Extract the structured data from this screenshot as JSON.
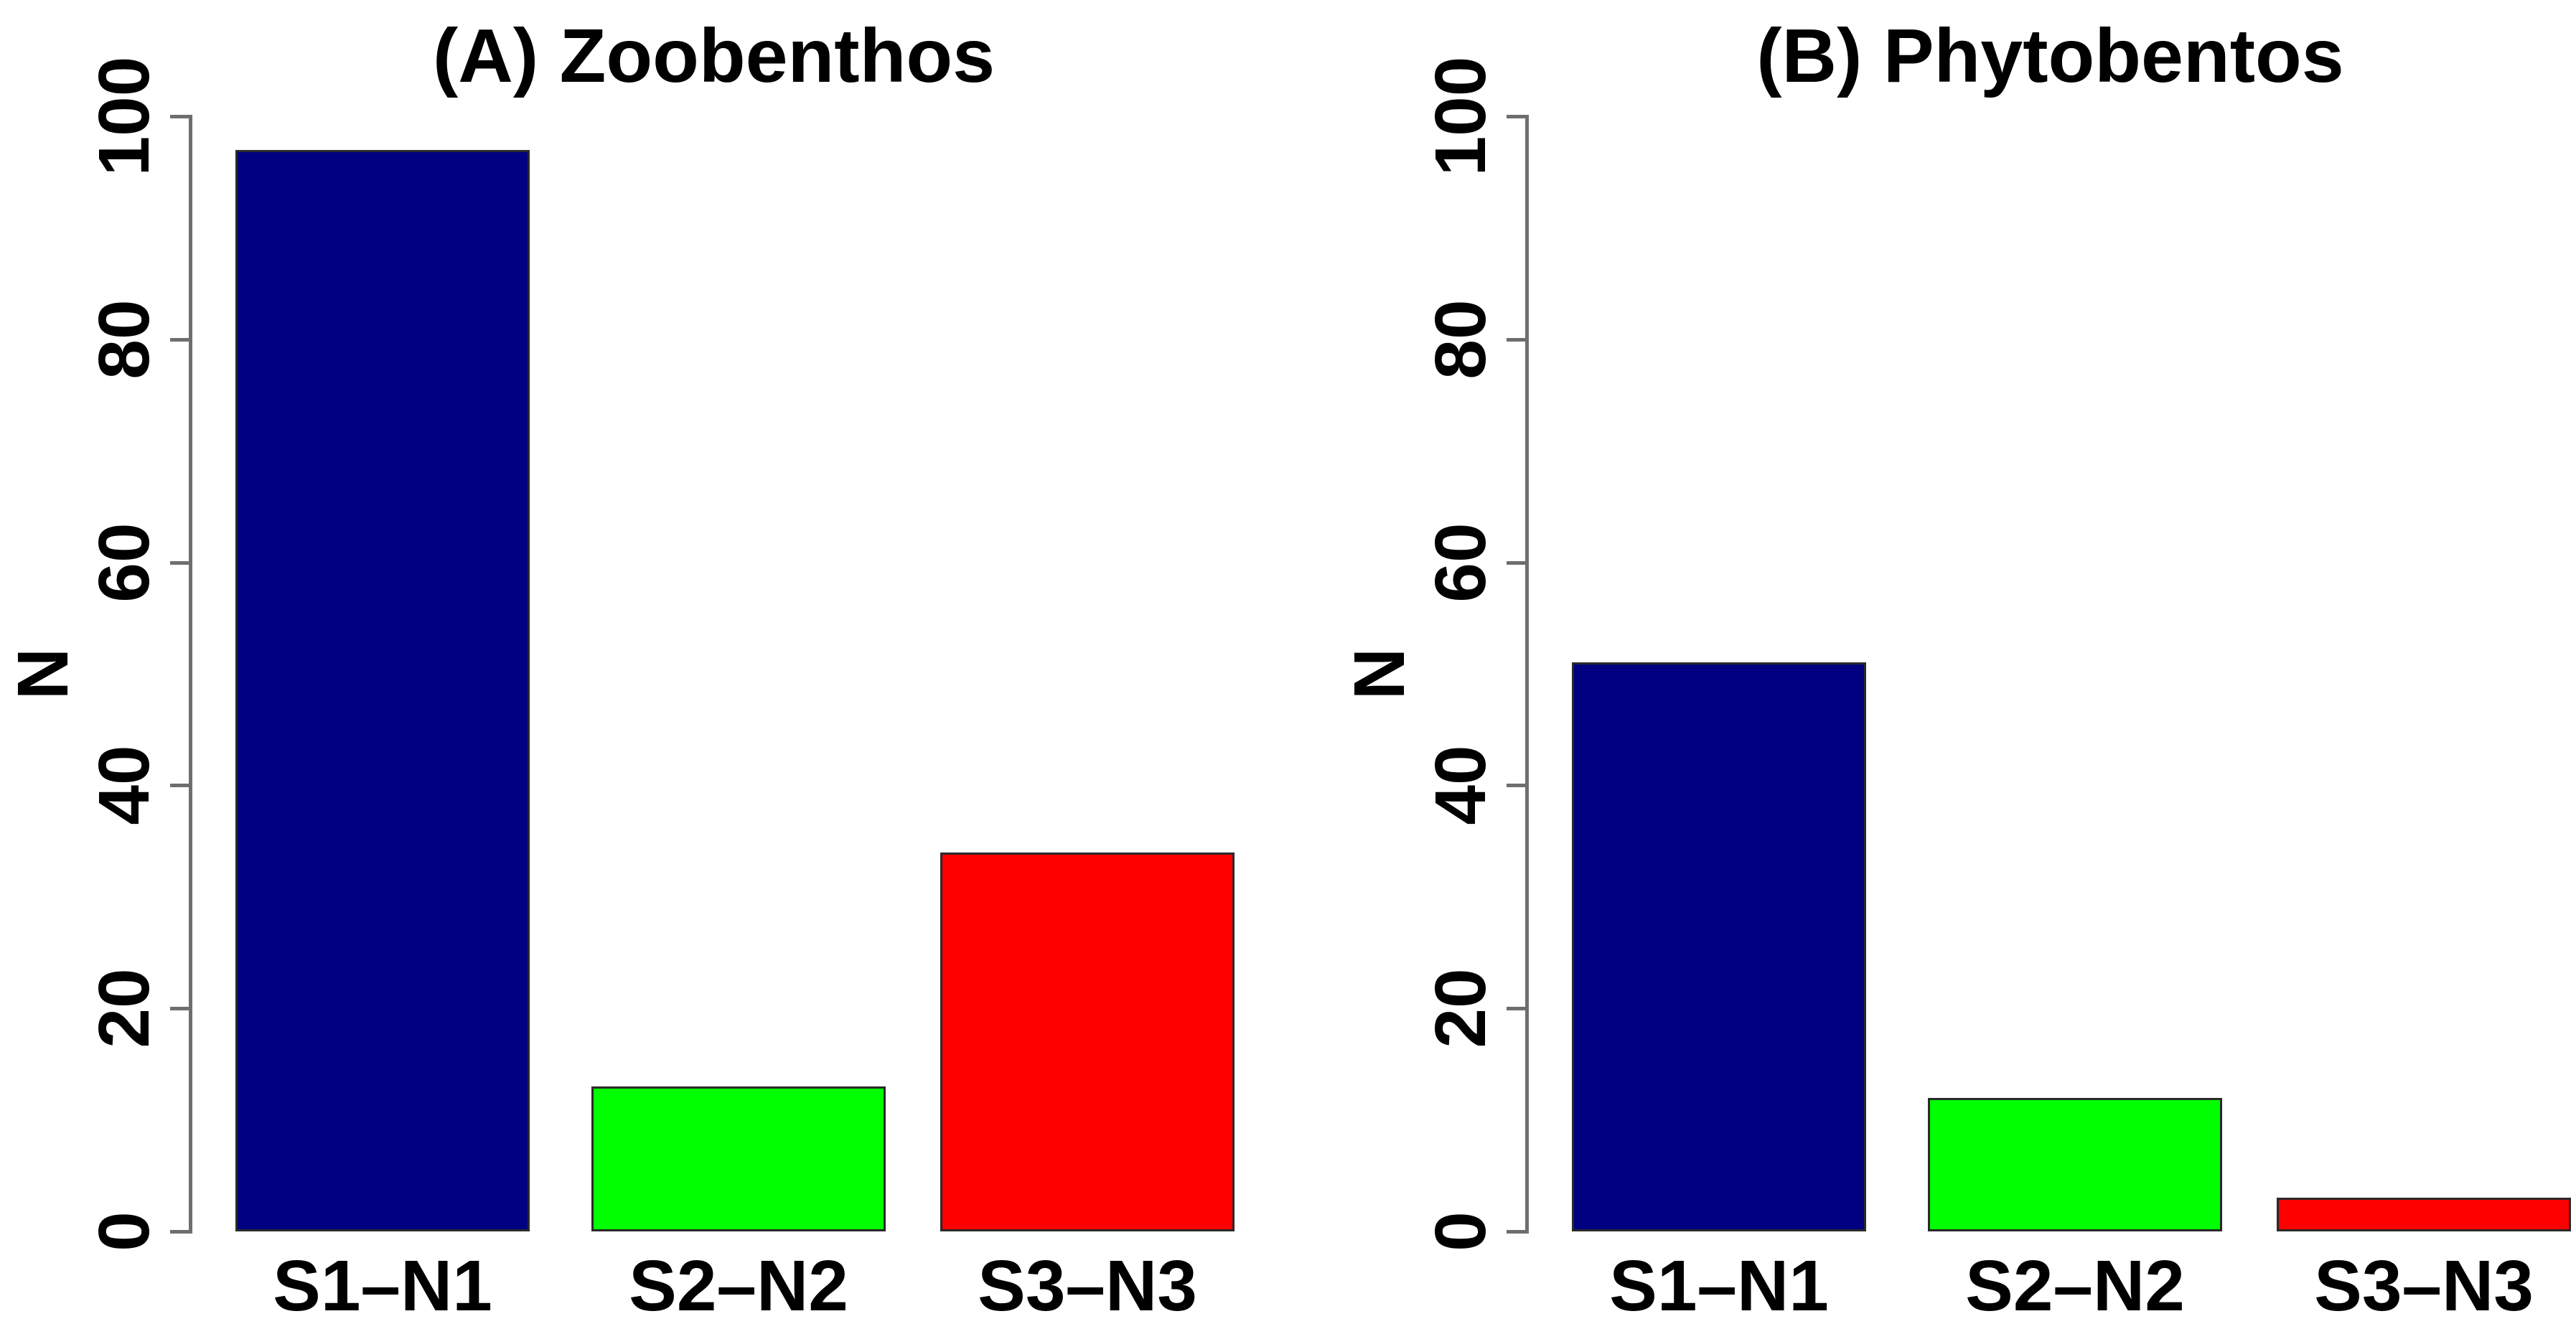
{
  "figure": {
    "background": "#ffffff",
    "axis_color": "#6e6e6e",
    "text_color": "#000000"
  },
  "chart_data": [
    {
      "type": "bar",
      "title": "(A) Zoobenthos",
      "ylabel": "N",
      "categories": [
        "S1–N1",
        "S2–N2",
        "S3–N3"
      ],
      "values": [
        97,
        13,
        34
      ],
      "bar_colors": [
        "#000080",
        "#00FF00",
        "#FF0000"
      ],
      "ylim": [
        0,
        100
      ],
      "yticks": [
        0,
        20,
        40,
        60,
        80,
        100
      ],
      "grid": false,
      "legend_position": "none"
    },
    {
      "type": "bar",
      "title": "(B) Phytobentos",
      "ylabel": "N",
      "categories": [
        "S1–N1",
        "S2–N2",
        "S3–N3"
      ],
      "values": [
        51,
        12,
        3
      ],
      "bar_colors": [
        "#000080",
        "#00FF00",
        "#FF0000"
      ],
      "ylim": [
        0,
        100
      ],
      "yticks": [
        0,
        20,
        40,
        60,
        80,
        100
      ],
      "grid": false,
      "legend_position": "none"
    }
  ]
}
